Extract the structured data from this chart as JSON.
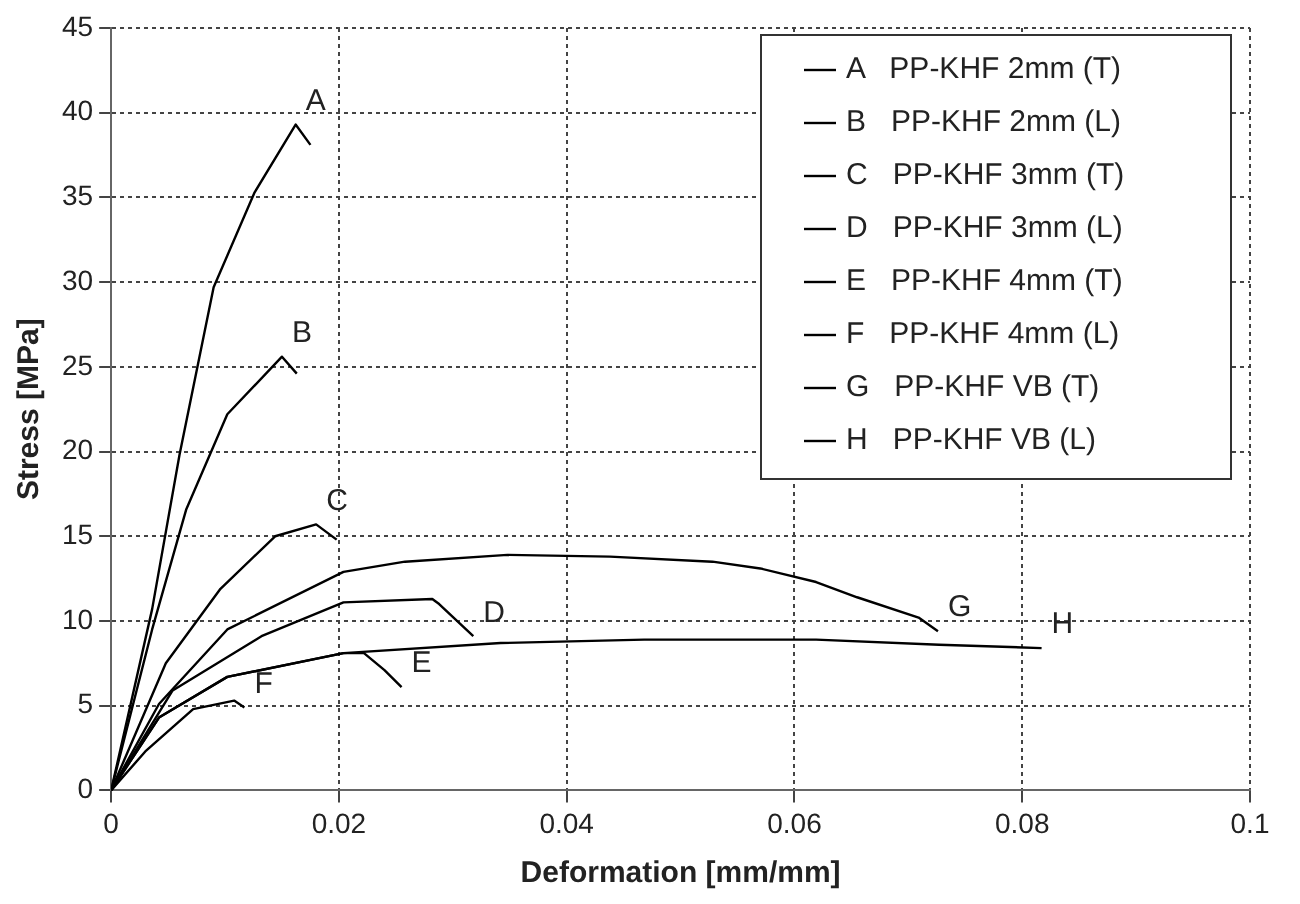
{
  "chart_data": {
    "type": "line",
    "xlabel": "Deformation [mm/mm]",
    "ylabel": "Stress [MPa]",
    "xlim": [
      0,
      0.1
    ],
    "xticks": [
      0,
      0.02,
      0.04,
      0.06,
      0.08,
      0.1
    ],
    "ylim": [
      0,
      45
    ],
    "yticks": [
      0,
      5,
      10,
      15,
      20,
      25,
      30,
      35,
      40,
      45
    ],
    "grid": true,
    "legend": "top right",
    "marker": "none",
    "line_style": "solid",
    "series": [
      {
        "name": "A   PP-KHF 2mm (T)",
        "color": "#000000",
        "x": [
          0,
          0.0036,
          0.006,
          0.009,
          0.0126,
          0.0162,
          0.0175
        ],
        "values": [
          0,
          10.7,
          19.8,
          29.7,
          35.3,
          39.3,
          38.1
        ]
      },
      {
        "name": "B   PP-KHF 2mm (L)",
        "color": "#000000",
        "x": [
          0,
          0.0036,
          0.0066,
          0.0102,
          0.015,
          0.0163
        ],
        "values": [
          0,
          9.5,
          16.6,
          22.2,
          25.6,
          24.6
        ]
      },
      {
        "name": "C   PP-KHF 3mm (T)",
        "color": "#000000",
        "x": [
          0,
          0.0048,
          0.0096,
          0.0144,
          0.018,
          0.0198
        ],
        "values": [
          0,
          7.5,
          11.9,
          15,
          15.7,
          14.8
        ]
      },
      {
        "name": "D   PP-KHF 3mm (L)",
        "color": "#000000",
        "x": [
          0,
          0.0054,
          0.0132,
          0.0204,
          0.0282,
          0.0288,
          0.0318
        ],
        "values": [
          0,
          5.9,
          9.1,
          11.1,
          11.3,
          11,
          9.1
        ]
      },
      {
        "name": "E   PP-KHF 4mm (T)",
        "color": "#000000",
        "x": [
          0,
          0.0042,
          0.0102,
          0.0204,
          0.0222,
          0.024,
          0.0255
        ],
        "values": [
          0,
          4.3,
          6.7,
          8.1,
          8.1,
          7.1,
          6.1
        ]
      },
      {
        "name": "F   PP-KHF 4mm (L)",
        "color": "#000000",
        "x": [
          0,
          0.003,
          0.0072,
          0.0108,
          0.0117
        ],
        "values": [
          0,
          2.3,
          4.8,
          5.3,
          4.9
        ]
      },
      {
        "name": "G   PP-KHF VB (T)",
        "color": "#000000",
        "x": [
          0,
          0.0042,
          0.0102,
          0.0204,
          0.0258,
          0.0348,
          0.0438,
          0.0528,
          0.057,
          0.0619,
          0.0655,
          0.0709,
          0.0726
        ],
        "values": [
          0,
          5.1,
          9.5,
          12.9,
          13.5,
          13.9,
          13.8,
          13.5,
          13.1,
          12.3,
          11.4,
          10.2,
          9.4
        ]
      },
      {
        "name": "H   PP-KHF VB (L)",
        "color": "#000000",
        "x": [
          0,
          0.0042,
          0.0102,
          0.0204,
          0.0342,
          0.0468,
          0.0619,
          0.0727,
          0.0817
        ],
        "values": [
          0,
          4.3,
          6.7,
          8.1,
          8.7,
          8.9,
          8.9,
          8.6,
          8.4
        ]
      }
    ],
    "annotations": [
      {
        "text": "A",
        "x": 0.0162,
        "y": 39.3
      },
      {
        "text": "B",
        "x": 0.015,
        "y": 25.6
      },
      {
        "text": "C",
        "x": 0.018,
        "y": 15.7
      },
      {
        "text": "D",
        "x": 0.0318,
        "y": 9.1
      },
      {
        "text": "E",
        "x": 0.0255,
        "y": 6.1
      },
      {
        "text": "F",
        "x": 0.0117,
        "y": 4.9
      },
      {
        "text": "G",
        "x": 0.0726,
        "y": 9.4
      },
      {
        "text": "H",
        "x": 0.0817,
        "y": 8.4
      }
    ]
  }
}
